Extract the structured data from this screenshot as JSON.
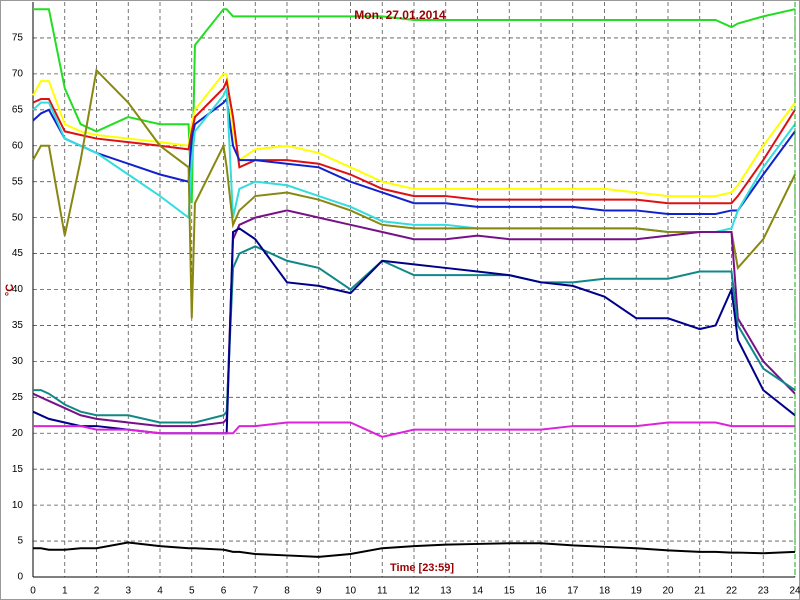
{
  "chart_data": {
    "type": "line",
    "title": "Mon. 27.01.2014",
    "x_label": "Time [23:59]",
    "y_label": "°C",
    "x": [
      0,
      0.25,
      0.5,
      1,
      1.5,
      2,
      3,
      4,
      4.9,
      5,
      5.1,
      6,
      6.1,
      6.3,
      6.5,
      7,
      8,
      9,
      10,
      11,
      12,
      13,
      14,
      15,
      16,
      17,
      18,
      19,
      20,
      21,
      21.5,
      22,
      22.2,
      23,
      24
    ],
    "xlim": [
      0,
      24
    ],
    "xticks": [
      0,
      1,
      2,
      3,
      4,
      5,
      6,
      7,
      8,
      9,
      10,
      11,
      12,
      13,
      14,
      15,
      16,
      17,
      18,
      19,
      20,
      21,
      22,
      23,
      24
    ],
    "ylim": [
      0,
      80
    ],
    "yticks": [
      0,
      5,
      10,
      15,
      20,
      25,
      30,
      35,
      40,
      45,
      50,
      55,
      60,
      65,
      70,
      75
    ],
    "grid": true,
    "series": [
      {
        "color": "#22dd22",
        "values": [
          79,
          79,
          79,
          68,
          63,
          62,
          64,
          63,
          63,
          52,
          74,
          79,
          79,
          78,
          78,
          78,
          78,
          78,
          78,
          78,
          77.5,
          77.5,
          77.5,
          77.5,
          77.5,
          77.5,
          77.5,
          77.5,
          77.5,
          77.5,
          77.5,
          76.5,
          77,
          78,
          79
        ]
      },
      {
        "color": "#ffff00",
        "values": [
          67,
          69,
          69,
          63,
          62,
          61.5,
          61,
          60.5,
          60,
          63,
          65,
          70,
          70,
          62,
          58,
          59.5,
          60,
          59,
          57,
          55,
          54,
          54,
          54,
          54,
          54,
          54,
          54,
          53.5,
          53,
          53,
          53,
          53.5,
          54.5,
          60,
          66
        ]
      },
      {
        "color": "#dd1111",
        "values": [
          66,
          66.5,
          66.5,
          62,
          61.5,
          61,
          60.5,
          60,
          59.5,
          62,
          64,
          68,
          69,
          64,
          57,
          58,
          58,
          57.5,
          56,
          54,
          53,
          53,
          52.5,
          52.5,
          52.5,
          52.5,
          52.5,
          52.5,
          52,
          52,
          52,
          52,
          53,
          58,
          65
        ]
      },
      {
        "color": "#1122cc",
        "values": [
          63.5,
          64.5,
          65,
          61,
          60,
          59,
          57.5,
          56,
          55,
          61,
          63,
          66,
          66.5,
          60,
          58,
          58,
          57.5,
          57,
          55,
          53.5,
          52,
          52,
          51.5,
          51.5,
          51.5,
          51.5,
          51,
          51,
          50.5,
          50.5,
          50.5,
          51,
          51,
          56,
          62
        ]
      },
      {
        "color": "#33dddd",
        "values": [
          65,
          66,
          66,
          61,
          60,
          59,
          56,
          53,
          50,
          58,
          62,
          67,
          68,
          50,
          54,
          55,
          54.5,
          53,
          51.5,
          49.5,
          49,
          49,
          48.5,
          48.5,
          48.5,
          48.5,
          48.5,
          48.5,
          48,
          48,
          48,
          48.5,
          51,
          57,
          63
        ]
      },
      {
        "color": "#888811",
        "values": [
          58,
          60,
          60,
          47.5,
          58,
          70.5,
          66,
          60,
          57,
          36,
          52,
          60,
          57,
          49,
          51,
          53,
          53.5,
          52.5,
          51,
          49,
          48.5,
          48.5,
          48.5,
          48.5,
          48.5,
          48.5,
          48.5,
          48.5,
          48,
          48,
          48,
          48,
          43,
          47,
          56
        ]
      },
      {
        "color": "#771188",
        "values": [
          25.5,
          25,
          24.5,
          23.5,
          22.5,
          22,
          21.5,
          21,
          21,
          21,
          21,
          21.5,
          22,
          47,
          49,
          50,
          51,
          50,
          49,
          48,
          47,
          47,
          47.5,
          47,
          47,
          47,
          47,
          47,
          47.5,
          48,
          48,
          48,
          36,
          30,
          25.5
        ]
      },
      {
        "color": "#118888",
        "values": [
          26,
          26,
          25.5,
          24,
          23,
          22.5,
          22.5,
          21.5,
          21.5,
          21.5,
          21.5,
          22.5,
          23,
          43,
          45,
          46,
          44,
          43,
          40,
          44,
          42,
          42,
          42,
          42,
          41,
          41,
          41.5,
          41.5,
          41.5,
          42.5,
          42.5,
          42.5,
          35,
          29,
          26
        ]
      },
      {
        "color": "#000088",
        "values": [
          23,
          22.5,
          22,
          21.5,
          21,
          21,
          20.5,
          20,
          20,
          20,
          20,
          20,
          20,
          48,
          48.5,
          47,
          41,
          40.5,
          39.5,
          44,
          43.5,
          43,
          42.5,
          42,
          41,
          40.5,
          39,
          36,
          36,
          34.5,
          35,
          40,
          33,
          26,
          22.5
        ]
      },
      {
        "color": "#dd22dd",
        "values": [
          21,
          21,
          21,
          21,
          21,
          20.5,
          20.5,
          20,
          20,
          20,
          20,
          20,
          20,
          20,
          21,
          21,
          21.5,
          21.5,
          21.5,
          19.5,
          20.5,
          20.5,
          20.5,
          20.5,
          20.5,
          21,
          21,
          21,
          21.5,
          21.5,
          21.5,
          21,
          21,
          21,
          21
        ]
      },
      {
        "color": "#000000",
        "values": [
          4,
          4,
          3.8,
          3.8,
          4,
          4,
          4.8,
          4.3,
          4,
          4,
          4,
          3.8,
          3.7,
          3.5,
          3.5,
          3.2,
          3,
          2.8,
          3.2,
          4,
          4.3,
          4.5,
          4.6,
          4.7,
          4.7,
          4.4,
          4.2,
          4,
          3.7,
          3.5,
          3.5,
          3.4,
          3.4,
          3.3,
          3.5
        ]
      }
    ]
  }
}
